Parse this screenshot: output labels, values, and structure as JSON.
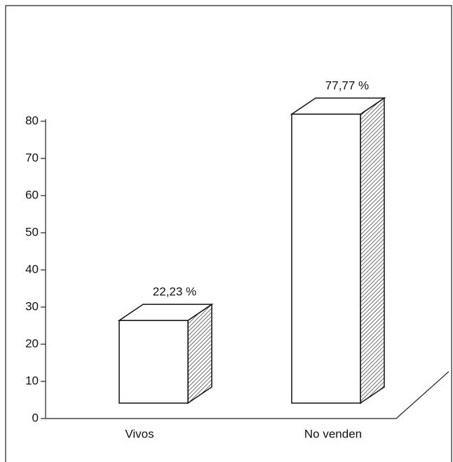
{
  "chart_data": {
    "type": "bar3d",
    "categories": [
      "Vivos",
      "No venden"
    ],
    "values": [
      22.23,
      77.77
    ],
    "value_labels": [
      "22,23 %",
      "77,77 %"
    ],
    "color": "#ffffff",
    "ylim": [
      0,
      80
    ],
    "yticks": [
      0,
      10,
      20,
      30,
      40,
      50,
      60,
      70,
      80
    ]
  }
}
